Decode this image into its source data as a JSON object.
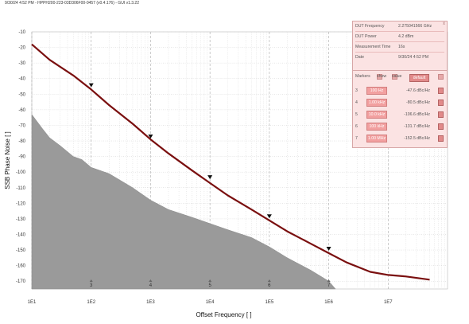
{
  "header_text": "9/30/24 4:52 PM - HPPH200-223-03D306F00-0457 (v0.4.176) - GUI v1.3.22",
  "info": {
    "rows": [
      {
        "key": "DUT Frequency",
        "value": "2.275041566 GHz"
      },
      {
        "key": "DUT Power",
        "value": "4.2 dBm"
      },
      {
        "key": "Measurement Time",
        "value": "16s"
      },
      {
        "key": "Date",
        "value": "9/30/24 4:52 PM"
      }
    ],
    "close": "x"
  },
  "markers": {
    "title": "Markers",
    "show_label": "show",
    "value_label": "value",
    "default_label": "default",
    "rows": [
      {
        "index": "3",
        "freq": "100 Hz",
        "value": "-47.6 dBc/Hz"
      },
      {
        "index": "4",
        "freq": "1.00 kHz",
        "value": "-80.5 dBc/Hz"
      },
      {
        "index": "5",
        "freq": "10.0 kHz",
        "value": "-106.6 dBc/Hz"
      },
      {
        "index": "6",
        "freq": "100 kHz",
        "value": "-131.7 dBc/Hz"
      },
      {
        "index": "7",
        "freq": "1.00 MHz",
        "value": "-152.5 dBc/Hz"
      }
    ]
  },
  "chart_data": {
    "type": "line",
    "xlabel": "Offset Frequency [ ]",
    "ylabel": "SSB Phase Noise [ ]",
    "x_scale": "log",
    "xlim": [
      10,
      100000000
    ],
    "ylim": [
      -175,
      -10
    ],
    "x_tick_labels": [
      "1E1",
      "1E2",
      "1E3",
      "1E4",
      "1E5",
      "1E6",
      "1E7"
    ],
    "x_tick_values": [
      10,
      100,
      1000,
      10000,
      100000,
      1000000,
      10000000
    ],
    "y_ticks": [
      -10,
      -20,
      -30,
      -40,
      -50,
      -60,
      -70,
      -80,
      -90,
      -100,
      -110,
      -120,
      -130,
      -140,
      -150,
      -160,
      -170
    ],
    "grid": true,
    "line_color": "#7a0f0f",
    "fill_color": "#9a9a9a",
    "series": [
      {
        "values": [
          {
            "x": 10,
            "y": -18
          },
          {
            "x": 20,
            "y": -28
          },
          {
            "x": 50,
            "y": -38
          },
          {
            "x": 100,
            "y": -47
          },
          {
            "x": 200,
            "y": -57
          },
          {
            "x": 500,
            "y": -69
          },
          {
            "x": 1000,
            "y": -79
          },
          {
            "x": 2000,
            "y": -88
          },
          {
            "x": 5000,
            "y": -99
          },
          {
            "x": 10000,
            "y": -107
          },
          {
            "x": 20000,
            "y": -115
          },
          {
            "x": 50000,
            "y": -124
          },
          {
            "x": 100000,
            "y": -131
          },
          {
            "x": 200000,
            "y": -138
          },
          {
            "x": 500000,
            "y": -146
          },
          {
            "x": 1000000,
            "y": -152
          },
          {
            "x": 2000000,
            "y": -158
          },
          {
            "x": 5000000,
            "y": -164
          },
          {
            "x": 10000000,
            "y": -166
          },
          {
            "x": 20000000,
            "y": -167
          },
          {
            "x": 50000000,
            "y": -169
          }
        ]
      },
      {
        "values": [
          {
            "x": 10,
            "y": -63
          },
          {
            "x": 15,
            "y": -72
          },
          {
            "x": 20,
            "y": -78
          },
          {
            "x": 30,
            "y": -83
          },
          {
            "x": 50,
            "y": -90
          },
          {
            "x": 70,
            "y": -92
          },
          {
            "x": 100,
            "y": -97
          },
          {
            "x": 200,
            "y": -101
          },
          {
            "x": 500,
            "y": -110
          },
          {
            "x": 1000,
            "y": -118
          },
          {
            "x": 2000,
            "y": -124
          },
          {
            "x": 5000,
            "y": -129
          },
          {
            "x": 10000,
            "y": -133
          },
          {
            "x": 20000,
            "y": -137
          },
          {
            "x": 50000,
            "y": -142
          },
          {
            "x": 100000,
            "y": -148
          },
          {
            "x": 200000,
            "y": -155
          },
          {
            "x": 500000,
            "y": -163
          },
          {
            "x": 1000000,
            "y": -170
          },
          {
            "x": 1300000,
            "y": -175
          }
        ]
      }
    ],
    "markers": [
      {
        "label": "3",
        "x": 100,
        "y": -47.6
      },
      {
        "label": "4",
        "x": 1000,
        "y": -80.5
      },
      {
        "label": "5",
        "x": 10000,
        "y": -106.6
      },
      {
        "label": "6",
        "x": 100000,
        "y": -131.7
      },
      {
        "label": "7",
        "x": 1000000,
        "y": -152.5
      }
    ]
  }
}
